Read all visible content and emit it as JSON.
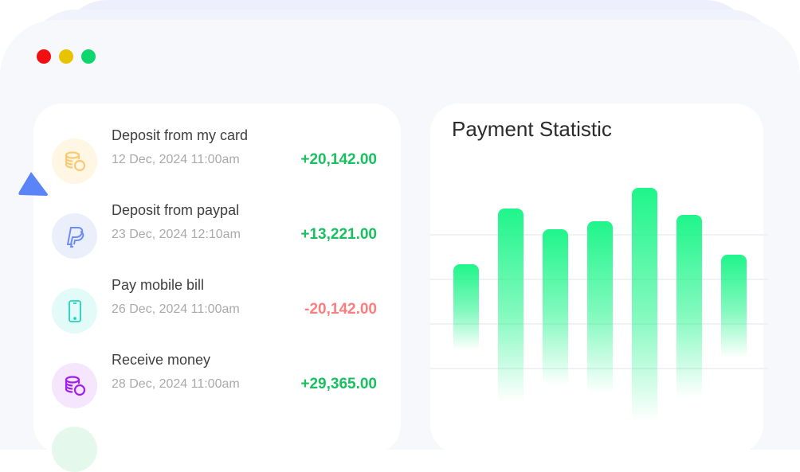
{
  "window": {
    "controls": [
      {
        "name": "close",
        "color": "#f20f0f"
      },
      {
        "name": "minimize",
        "color": "#e8c300"
      },
      {
        "name": "maximize",
        "color": "#0cd66d"
      }
    ]
  },
  "transactions": [
    {
      "title": "Deposit from my card",
      "date": "12 Dec, 2024 11:00am",
      "amount": "+20,142.00",
      "type": "credit",
      "icon": "coins-icon",
      "icon_color": "#fbc973",
      "icon_bg": "#fff6e4"
    },
    {
      "title": "Deposit from paypal",
      "date": "23 Dec, 2024 12:10am",
      "amount": "+13,221.00",
      "type": "credit",
      "icon": "paypal-icon",
      "icon_color": "#6d8cf5",
      "icon_bg": "#ebeffc"
    },
    {
      "title": "Pay mobile bill",
      "date": "26 Dec, 2024 11:00am",
      "amount": "-20,142.00",
      "type": "debit",
      "icon": "mobile-phone-icon",
      "icon_color": "#22d3c0",
      "icon_bg": "#e2faf8"
    },
    {
      "title": "Receive money",
      "date": "28 Dec, 2024 11:00am",
      "amount": "+29,365.00",
      "type": "credit",
      "icon": "coins-icon",
      "icon_color": "#a21ef0",
      "icon_bg": "#f5e6fd"
    }
  ],
  "colors": {
    "credit": "#18c05f",
    "debit": "#fb7d7d",
    "bar": "#1ff58a",
    "cursor": "#5a84f8"
  },
  "chart_data": {
    "type": "bar",
    "title": "Payment Statistic",
    "values": [
      208,
      278,
      252,
      262,
      304,
      270,
      220
    ],
    "grid": true,
    "xlabel": "",
    "ylabel": ""
  }
}
